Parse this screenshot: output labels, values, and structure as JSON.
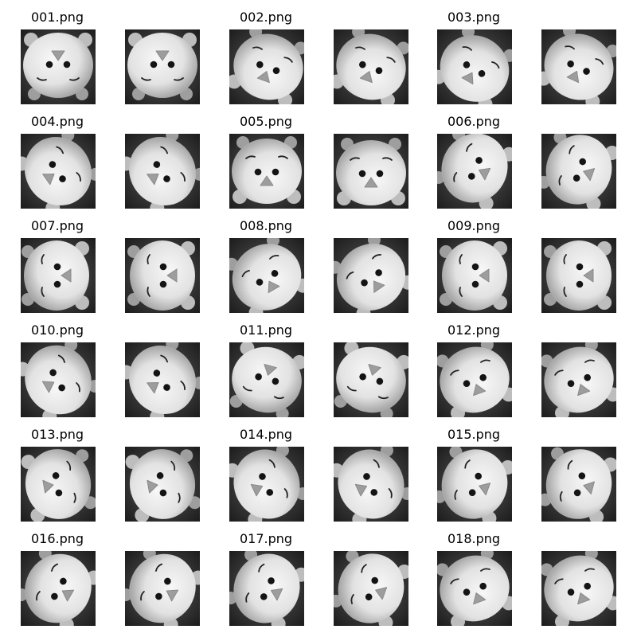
{
  "items": [
    {
      "label": "001.png",
      "variants": [
        {
          "rot": 0,
          "dx": 0,
          "dy": -2
        },
        {
          "rot": 0,
          "dx": 0,
          "dy": -2
        }
      ]
    },
    {
      "label": "002.png",
      "variants": [
        {
          "rot": 200,
          "dx": 2,
          "dy": 0
        },
        {
          "rot": 200,
          "dx": 0,
          "dy": 0
        }
      ]
    },
    {
      "label": "003.png",
      "variants": [
        {
          "rot": 210,
          "dx": 0,
          "dy": 2
        },
        {
          "rot": 205,
          "dx": 0,
          "dy": 0
        }
      ]
    },
    {
      "label": "004.png",
      "variants": [
        {
          "rot": 235,
          "dx": 0,
          "dy": 0
        },
        {
          "rot": 235,
          "dx": 0,
          "dy": 0
        }
      ]
    },
    {
      "label": "005.png",
      "variants": [
        {
          "rot": 180,
          "dx": 0,
          "dy": 0
        },
        {
          "rot": 180,
          "dx": 0,
          "dy": 2
        }
      ]
    },
    {
      "label": "006.png",
      "variants": [
        {
          "rot": 115,
          "dx": 0,
          "dy": -4
        },
        {
          "rot": 110,
          "dx": 0,
          "dy": -2
        }
      ]
    },
    {
      "label": "007.png",
      "variants": [
        {
          "rot": 90,
          "dx": -2,
          "dy": 0
        },
        {
          "rot": 90,
          "dx": 0,
          "dy": 0
        }
      ]
    },
    {
      "label": "008.png",
      "variants": [
        {
          "rot": 150,
          "dx": 0,
          "dy": 2
        },
        {
          "rot": 145,
          "dx": 0,
          "dy": 2
        }
      ]
    },
    {
      "label": "009.png",
      "variants": [
        {
          "rot": 90,
          "dx": 0,
          "dy": 0
        },
        {
          "rot": 90,
          "dx": 0,
          "dy": 0
        }
      ]
    },
    {
      "label": "010.png",
      "variants": [
        {
          "rot": 240,
          "dx": 0,
          "dy": 0
        },
        {
          "rot": 235,
          "dx": 0,
          "dy": 0
        }
      ]
    },
    {
      "label": "011.png",
      "variants": [
        {
          "rot": 15,
          "dx": 0,
          "dy": 0
        },
        {
          "rot": 15,
          "dx": 0,
          "dy": 0
        }
      ]
    },
    {
      "label": "012.png",
      "variants": [
        {
          "rot": 160,
          "dx": 0,
          "dy": 0
        },
        {
          "rot": 160,
          "dx": 0,
          "dy": 0
        }
      ]
    },
    {
      "label": "013.png",
      "variants": [
        {
          "rot": 260,
          "dx": 0,
          "dy": 0
        },
        {
          "rot": 260,
          "dx": 0,
          "dy": 0
        }
      ]
    },
    {
      "label": "014.png",
      "variants": [
        {
          "rot": 245,
          "dx": 0,
          "dy": 0
        },
        {
          "rot": 245,
          "dx": 0,
          "dy": 0
        }
      ]
    },
    {
      "label": "015.png",
      "variants": [
        {
          "rot": 110,
          "dx": 0,
          "dy": 0
        },
        {
          "rot": 105,
          "dx": 0,
          "dy": 0
        }
      ]
    },
    {
      "label": "016.png",
      "variants": [
        {
          "rot": 120,
          "dx": 0,
          "dy": 0
        },
        {
          "rot": 120,
          "dx": 0,
          "dy": 0
        }
      ]
    },
    {
      "label": "017.png",
      "variants": [
        {
          "rot": 115,
          "dx": 0,
          "dy": 0
        },
        {
          "rot": 110,
          "dx": 0,
          "dy": 0
        }
      ]
    },
    {
      "label": "018.png",
      "variants": [
        {
          "rot": 160,
          "dx": 0,
          "dy": 0
        },
        {
          "rot": 160,
          "dx": 0,
          "dy": 0
        }
      ]
    }
  ]
}
